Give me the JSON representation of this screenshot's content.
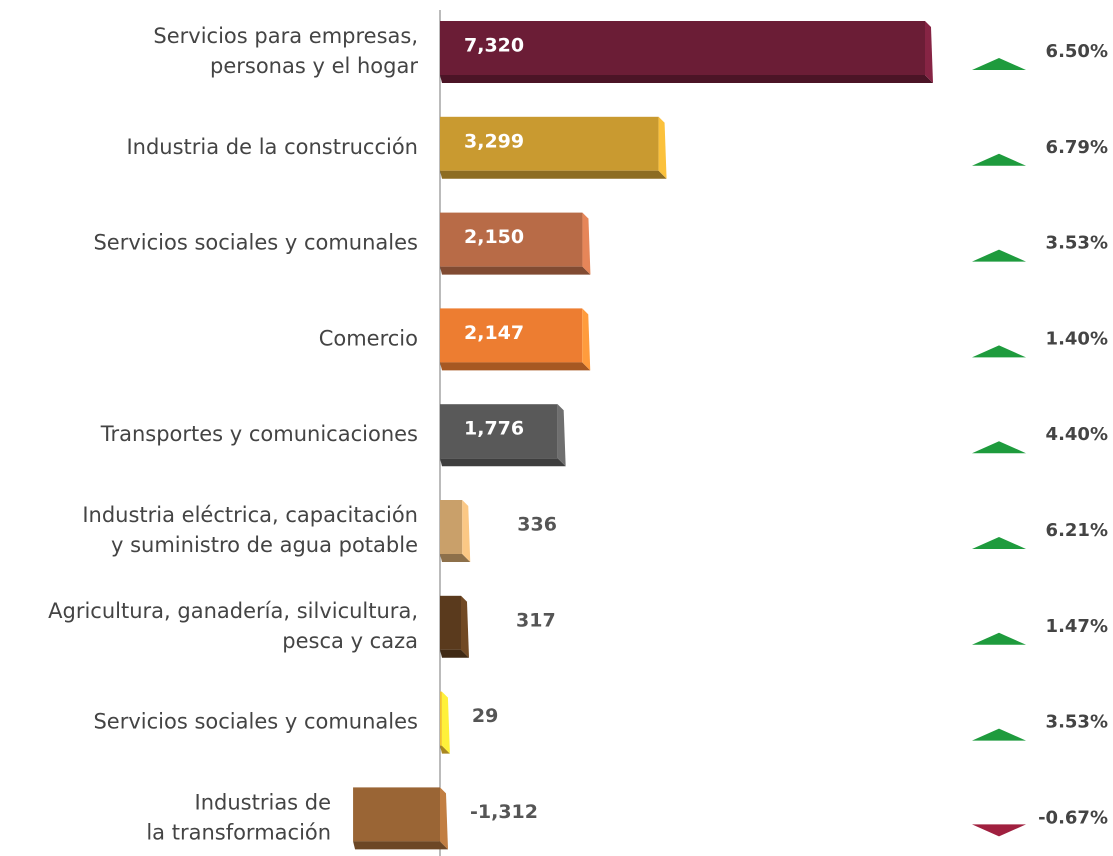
{
  "chart_data": {
    "type": "bar",
    "orientation": "horizontal",
    "categories": [
      "Servicios para empresas,\npersonas y el hogar",
      "Industria de la construcción",
      "Servicios sociales y comunales",
      "Comercio",
      "Transportes y comunicaciones",
      "Industria eléctrica, capacitación\ny suministro de agua potable",
      "Agricultura, ganadería, silvicultura,\npesca y caza",
      "Servicios sociales y comunales",
      "Industrias de\nla transformación"
    ],
    "values": [
      7320,
      3299,
      2150,
      2147,
      1776,
      336,
      317,
      29,
      -1312
    ],
    "value_labels": [
      "7,320",
      "3,299",
      "2,150",
      "2,147",
      "1,776",
      "336",
      "317",
      "29",
      "-1,312"
    ],
    "colors": [
      "#6b1d36",
      "#c99a30",
      "#b86b47",
      "#ed7d31",
      "#595959",
      "#c9a06a",
      "#5a3a1d",
      "#f2c12e",
      "#9a6535"
    ],
    "changes": [
      6.5,
      6.79,
      3.53,
      1.4,
      4.4,
      6.21,
      1.47,
      3.53,
      -0.67
    ],
    "change_labels": [
      "6.50%",
      "6.79%",
      "3.53%",
      "1.40%",
      "4.40%",
      "6.21%",
      "1.47%",
      "3.53%",
      "-0.67%"
    ],
    "up_color": "#1e9b3d",
    "down_color": "#a0203f"
  }
}
